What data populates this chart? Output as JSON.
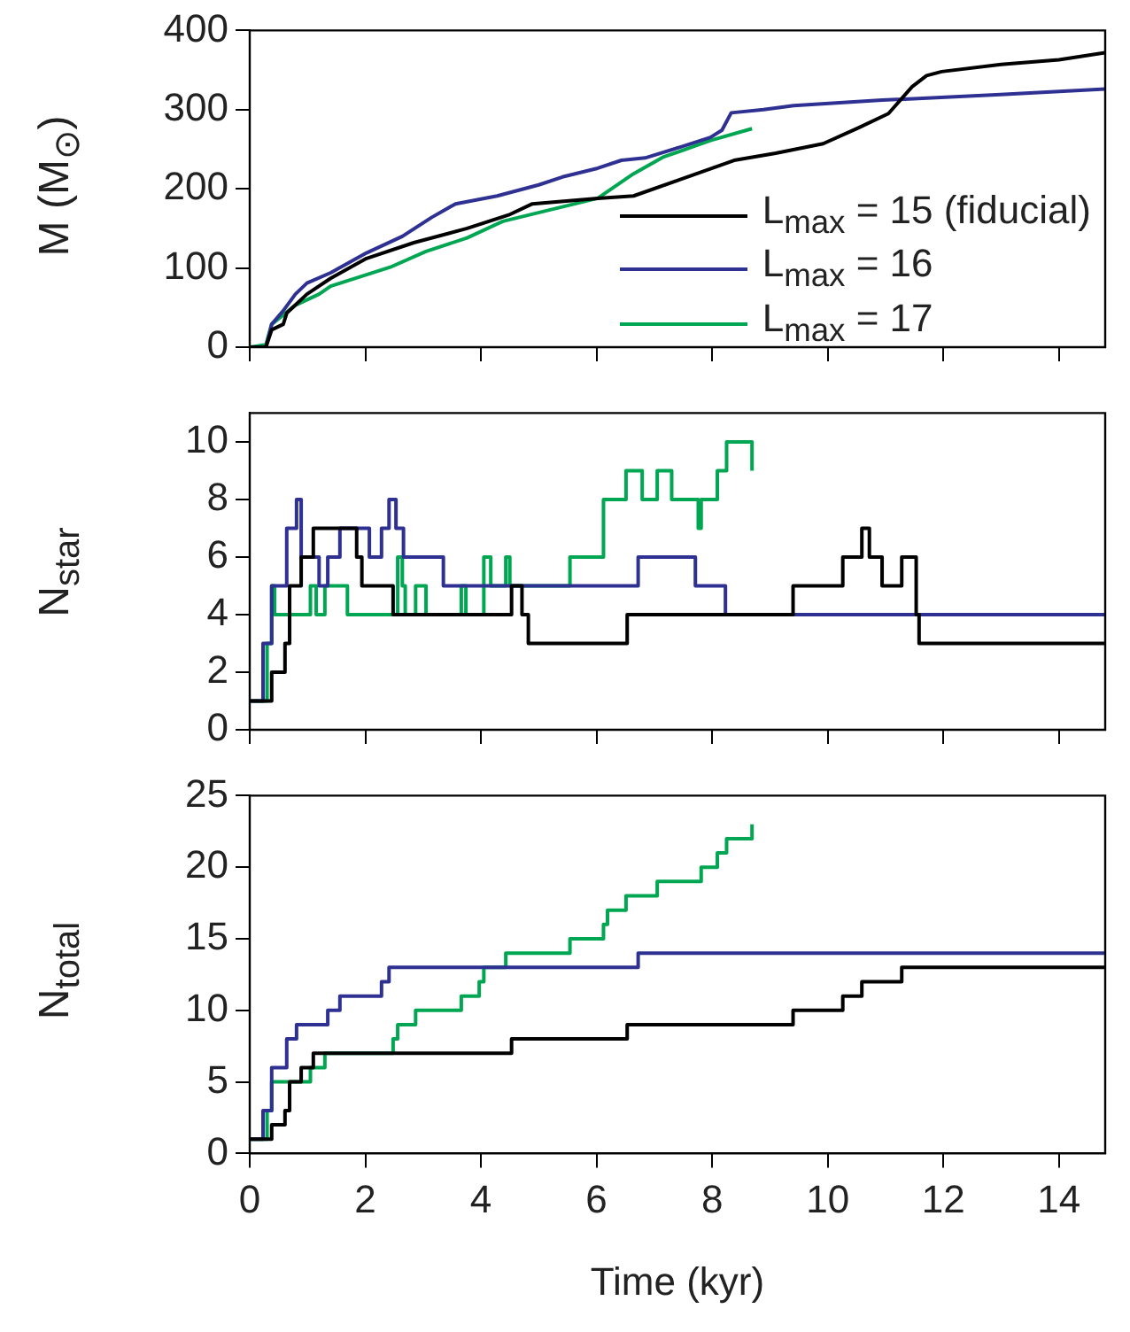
{
  "chart_data": [
    {
      "type": "line",
      "ylabel": "M (M$_{⊙}$)",
      "xlim": [
        0,
        14.8
      ],
      "ylim": [
        0,
        400
      ],
      "yticks": [
        0,
        100,
        200,
        300,
        400
      ],
      "xticks": [
        0,
        2,
        4,
        6,
        8,
        10,
        12,
        14
      ],
      "tick_labels": "y",
      "grid": false,
      "legend": "bottom right",
      "series": [
        {
          "name": "L$_{max}$ = 15 (fiducial)",
          "color": "#000000",
          "x": [
            0,
            0.28,
            0.38,
            0.58,
            0.64,
            0.99,
            1.4,
            2.02,
            2.84,
            3.76,
            4.48,
            4.89,
            6.02,
            6.64,
            7.46,
            8.38,
            9.1,
            9.92,
            10.53,
            11.05,
            11.46,
            11.71,
            11.97,
            13.0,
            14.0,
            14.8
          ],
          "values": [
            0,
            0,
            22,
            29,
            43,
            67,
            87,
            112,
            132,
            150,
            167,
            181,
            188,
            191,
            212,
            236,
            245,
            257,
            277,
            295,
            329,
            343,
            348,
            357,
            363,
            372
          ]
        },
        {
          "name": "L$_{max}$ = 16",
          "color": "#2e3192",
          "x": [
            0,
            0.28,
            0.38,
            0.58,
            0.79,
            0.99,
            1.4,
            2.02,
            2.64,
            3.15,
            3.56,
            4.28,
            5.0,
            5.41,
            6.02,
            6.43,
            6.84,
            7.46,
            7.97,
            8.17,
            8.33,
            8.89,
            9.41,
            10.94,
            12.99,
            14.8
          ],
          "values": [
            0,
            0,
            29,
            46,
            67,
            81,
            94,
            119,
            140,
            164,
            181,
            191,
            205,
            215,
            226,
            236,
            239,
            253,
            265,
            274,
            296,
            300,
            305,
            312,
            319,
            326
          ]
        },
        {
          "name": "L$_{max}$ = 17",
          "color": "#00a651",
          "x": [
            0,
            0.28,
            0.38,
            0.79,
            1.2,
            1.4,
            2.43,
            3.05,
            3.76,
            4.38,
            6.02,
            6.64,
            7.15,
            7.97,
            8.69
          ],
          "values": [
            0,
            3,
            29,
            53,
            67,
            77,
            101,
            121,
            138,
            159,
            188,
            219,
            240,
            261,
            276
          ]
        }
      ]
    },
    {
      "type": "step",
      "ylabel": "N$_{star}$",
      "xlim": [
        0,
        14.8
      ],
      "ylim": [
        0,
        11
      ],
      "yticks": [
        0,
        2,
        4,
        6,
        8,
        10
      ],
      "xticks": [
        0,
        2,
        4,
        6,
        8,
        10,
        12,
        14
      ],
      "tick_labels": "y",
      "grid": false,
      "series": [
        {
          "color": "#000000",
          "x": [
            0,
            0.38,
            0.61,
            0.69,
            0.89,
            1.1,
            1.85,
            1.94,
            2.48,
            4.53,
            4.71,
            4.82,
            6.53,
            9.4,
            10.26,
            10.59,
            10.72,
            10.94,
            11.28,
            11.53,
            11.58,
            14.8
          ],
          "values": [
            1,
            2,
            3,
            5,
            6,
            7,
            6,
            5,
            4,
            5,
            4,
            3,
            4,
            5,
            6,
            7,
            6,
            5,
            6,
            4,
            3,
            3
          ]
        },
        {
          "color": "#2e3192",
          "x": [
            0,
            0.23,
            0.38,
            0.64,
            0.81,
            0.89,
            1.2,
            1.35,
            1.56,
            2.07,
            2.28,
            2.41,
            2.53,
            2.66,
            3.35,
            6.72,
            7.71,
            8.23,
            14.8
          ],
          "values": [
            1,
            3,
            5,
            7,
            8,
            6,
            5,
            6,
            7,
            6,
            7,
            8,
            7,
            6,
            5,
            6,
            5,
            4,
            4
          ]
        },
        {
          "color": "#00a651",
          "x": [
            0,
            0.3,
            0.38,
            0.43,
            1.05,
            1.15,
            1.3,
            1.69,
            2.56,
            2.64,
            2.69,
            2.87,
            3.05,
            3.66,
            3.74,
            4.05,
            4.17,
            4.43,
            4.5,
            5.54,
            6.12,
            6.51,
            6.79,
            7.05,
            7.3,
            7.76,
            7.81,
            8.09,
            8.25,
            8.69
          ],
          "values": [
            1,
            3,
            5,
            4,
            5,
            4,
            5,
            4,
            6,
            5,
            4,
            5,
            4,
            5,
            4,
            6,
            5,
            6,
            5,
            6,
            8,
            9,
            8,
            9,
            8,
            7,
            8,
            9,
            10,
            9
          ]
        }
      ]
    },
    {
      "type": "step",
      "xlabel": "Time (kyr)",
      "ylabel": "N$_{total}$",
      "xlim": [
        0,
        14.8
      ],
      "ylim": [
        0,
        25
      ],
      "yticks": [
        0,
        5,
        10,
        15,
        20,
        25
      ],
      "xticks": [
        0,
        2,
        4,
        6,
        8,
        10,
        12,
        14
      ],
      "grid": false,
      "series": [
        {
          "color": "#000000",
          "x": [
            0,
            0.38,
            0.61,
            0.69,
            0.89,
            1.1,
            4.53,
            6.53,
            9.4,
            10.26,
            10.59,
            11.28,
            14.8
          ],
          "values": [
            1,
            2,
            3,
            5,
            6,
            7,
            8,
            9,
            10,
            11,
            12,
            13,
            13
          ]
        },
        {
          "color": "#2e3192",
          "x": [
            0,
            0.23,
            0.38,
            0.64,
            0.81,
            1.35,
            1.56,
            2.28,
            2.41,
            6.72,
            14.8
          ],
          "values": [
            1,
            3,
            6,
            8,
            9,
            10,
            11,
            12,
            13,
            14,
            14
          ]
        },
        {
          "color": "#00a651",
          "x": [
            0,
            0.3,
            0.38,
            1.05,
            1.3,
            2.48,
            2.56,
            2.87,
            3.66,
            3.97,
            4.05,
            4.43,
            5.54,
            6.12,
            6.19,
            6.51,
            7.05,
            7.81,
            8.09,
            8.25,
            8.69
          ],
          "values": [
            1,
            3,
            5,
            6,
            7,
            8,
            9,
            10,
            11,
            12,
            13,
            14,
            15,
            16,
            17,
            18,
            19,
            20,
            21,
            22,
            23
          ]
        }
      ]
    }
  ]
}
